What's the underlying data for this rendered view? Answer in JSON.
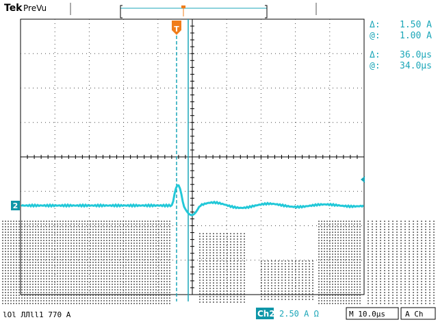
{
  "header": {
    "brand": "Tek",
    "mode": "PreVu",
    "trigger_marker": "T",
    "channel_marker": "2"
  },
  "readouts": {
    "delta_amp_label": "Δ:",
    "delta_amp_value": "1.50 A",
    "at_amp_label": "@:",
    "at_amp_value": "1.00 A",
    "delta_time_label": "Δ:",
    "delta_time_value": "36.0μs",
    "at_time_label": "@:",
    "at_time_value": "34.0μs"
  },
  "status_bar": {
    "left_text": "lOl ЛЛll1 770 A",
    "channel_label": "Ch2",
    "channel_scale": "2.50 A Ω",
    "timebase": "M 10.0μs",
    "trigger": "A  Ch"
  },
  "colors": {
    "trace": "#22c8d8",
    "cursor": "#1aa6b8",
    "trigger": "#f07d1a",
    "grid": "#000000",
    "channel_badge": "#0f96a8"
  },
  "icons": {
    "trigger_position": "trigger-arrow-icon",
    "trigger_level": "trigger-level-arrow-icon",
    "channel_ground": "channel-ground-icon"
  }
}
